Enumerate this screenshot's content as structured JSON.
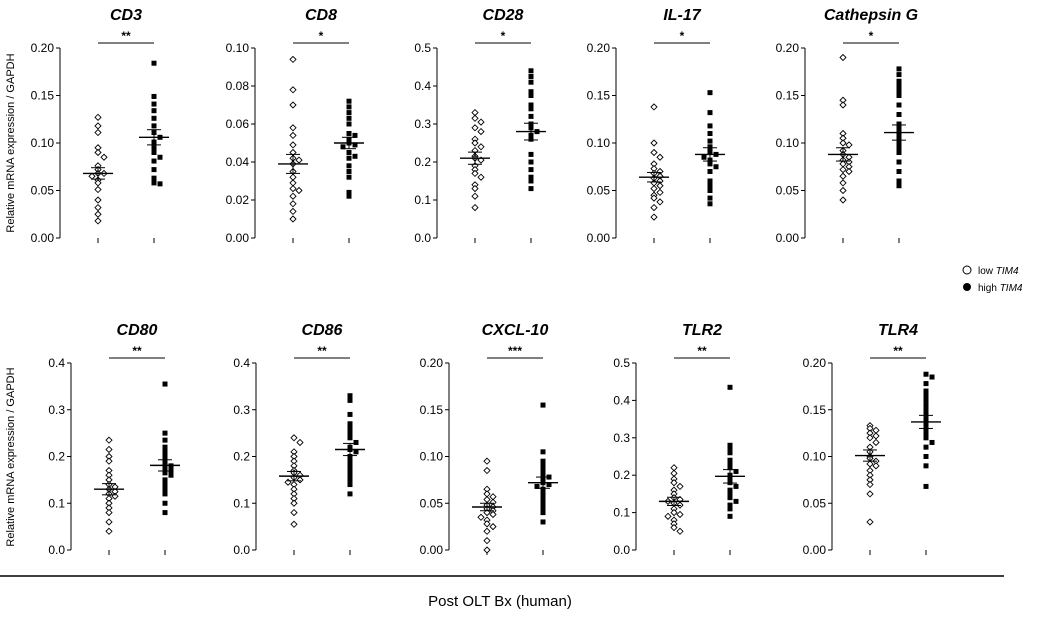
{
  "chart_data": {
    "type": "scatter",
    "figure_xlabel": "Post OLT Bx (human)",
    "ylabel": "Relative mRNA expression / GAPDH",
    "legend": {
      "low_prefix": "low ",
      "high_prefix": "high ",
      "gene": "TIM4"
    },
    "panels": [
      {
        "title": "CD3",
        "sig": "**",
        "ylim": [
          0,
          0.2
        ],
        "ticks": [
          "0.00",
          "0.05",
          "0.10",
          "0.15",
          "0.20"
        ],
        "tick_values": [
          0,
          0.05,
          0.1,
          0.15,
          0.2
        ],
        "low": {
          "mean": 0.068,
          "sem": 0.006,
          "values": [
            0.127,
            0.118,
            0.111,
            0.095,
            0.09,
            0.085,
            0.076,
            0.072,
            0.068,
            0.068,
            0.065,
            0.061,
            0.058,
            0.051,
            0.04,
            0.032,
            0.025,
            0.018
          ]
        },
        "high": {
          "mean": 0.106,
          "sem": 0.008,
          "values": [
            0.184,
            0.149,
            0.141,
            0.134,
            0.126,
            0.118,
            0.111,
            0.106,
            0.101,
            0.095,
            0.09,
            0.085,
            0.081,
            0.072,
            0.063,
            0.058,
            0.057
          ]
        }
      },
      {
        "title": "CD8",
        "sig": "*",
        "ylim": [
          0,
          0.1
        ],
        "ticks": [
          "0.00",
          "0.02",
          "0.04",
          "0.06",
          "0.08",
          "0.10"
        ],
        "tick_values": [
          0,
          0.02,
          0.04,
          0.06,
          0.08,
          0.1
        ],
        "low": {
          "mean": 0.039,
          "sem": 0.005,
          "values": [
            0.094,
            0.078,
            0.07,
            0.058,
            0.054,
            0.049,
            0.045,
            0.042,
            0.041,
            0.039,
            0.035,
            0.032,
            0.029,
            0.026,
            0.025,
            0.022,
            0.018,
            0.01,
            0.014
          ]
        },
        "high": {
          "mean": 0.05,
          "sem": 0.003,
          "values": [
            0.072,
            0.069,
            0.066,
            0.063,
            0.06,
            0.055,
            0.054,
            0.052,
            0.05,
            0.049,
            0.048,
            0.045,
            0.043,
            0.042,
            0.038,
            0.035,
            0.032,
            0.024,
            0.022
          ]
        }
      },
      {
        "title": "CD28",
        "sig": "*",
        "ylim": [
          0,
          0.5
        ],
        "ticks": [
          "0.0",
          "0.1",
          "0.2",
          "0.3",
          "0.4",
          "0.5"
        ],
        "tick_values": [
          0,
          0.1,
          0.2,
          0.3,
          0.4,
          0.5
        ],
        "low": {
          "mean": 0.21,
          "sem": 0.016,
          "values": [
            0.33,
            0.315,
            0.305,
            0.29,
            0.28,
            0.26,
            0.25,
            0.24,
            0.23,
            0.215,
            0.21,
            0.205,
            0.19,
            0.18,
            0.17,
            0.16,
            0.14,
            0.13,
            0.11,
            0.08
          ]
        },
        "high": {
          "mean": 0.28,
          "sem": 0.022,
          "values": [
            0.44,
            0.425,
            0.41,
            0.385,
            0.375,
            0.35,
            0.34,
            0.32,
            0.3,
            0.29,
            0.28,
            0.27,
            0.26,
            0.22,
            0.2,
            0.18,
            0.16,
            0.15,
            0.13
          ]
        }
      },
      {
        "title": "IL-17",
        "sig": "*",
        "ylim": [
          0,
          0.2
        ],
        "ticks": [
          "0.00",
          "0.05",
          "0.10",
          "0.15",
          "0.20"
        ],
        "tick_values": [
          0,
          0.05,
          0.1,
          0.15,
          0.2
        ],
        "low": {
          "mean": 0.064,
          "sem": 0.005,
          "values": [
            0.138,
            0.1,
            0.09,
            0.085,
            0.078,
            0.073,
            0.07,
            0.068,
            0.065,
            0.063,
            0.06,
            0.058,
            0.055,
            0.052,
            0.048,
            0.045,
            0.042,
            0.038,
            0.032,
            0.022
          ]
        },
        "high": {
          "mean": 0.088,
          "sem": 0.007,
          "values": [
            0.153,
            0.132,
            0.118,
            0.11,
            0.102,
            0.096,
            0.092,
            0.09,
            0.088,
            0.085,
            0.082,
            0.078,
            0.075,
            0.07,
            0.06,
            0.055,
            0.05,
            0.042,
            0.036
          ]
        }
      },
      {
        "title": "Cathepsin G",
        "sig": "*",
        "ylim": [
          0,
          0.2
        ],
        "ticks": [
          "0.00",
          "0.05",
          "0.10",
          "0.15",
          "0.20"
        ],
        "tick_values": [
          0,
          0.05,
          0.1,
          0.15,
          0.2
        ],
        "low": {
          "mean": 0.088,
          "sem": 0.007,
          "values": [
            0.19,
            0.145,
            0.14,
            0.11,
            0.105,
            0.1,
            0.098,
            0.092,
            0.088,
            0.085,
            0.082,
            0.08,
            0.078,
            0.075,
            0.072,
            0.07,
            0.065,
            0.058,
            0.05,
            0.04
          ]
        },
        "high": {
          "mean": 0.111,
          "sem": 0.008,
          "values": [
            0.178,
            0.172,
            0.165,
            0.16,
            0.155,
            0.15,
            0.14,
            0.13,
            0.12,
            0.115,
            0.11,
            0.105,
            0.1,
            0.095,
            0.09,
            0.08,
            0.07,
            0.06,
            0.055
          ]
        }
      },
      {
        "title": "CD80",
        "sig": "**",
        "ylim": [
          0,
          0.4
        ],
        "ticks": [
          "0.0",
          "0.1",
          "0.2",
          "0.3",
          "0.4"
        ],
        "tick_values": [
          0,
          0.1,
          0.2,
          0.3,
          0.4
        ],
        "low": {
          "mean": 0.13,
          "sem": 0.012,
          "values": [
            0.235,
            0.215,
            0.2,
            0.19,
            0.17,
            0.16,
            0.15,
            0.14,
            0.135,
            0.13,
            0.125,
            0.12,
            0.115,
            0.11,
            0.1,
            0.09,
            0.08,
            0.06,
            0.04
          ]
        },
        "high": {
          "mean": 0.181,
          "sem": 0.012,
          "values": [
            0.355,
            0.25,
            0.235,
            0.22,
            0.21,
            0.2,
            0.19,
            0.185,
            0.18,
            0.175,
            0.17,
            0.165,
            0.16,
            0.15,
            0.14,
            0.13,
            0.12,
            0.1,
            0.08
          ]
        }
      },
      {
        "title": "CD86",
        "sig": "**",
        "ylim": [
          0,
          0.4
        ],
        "ticks": [
          "0.0",
          "0.1",
          "0.2",
          "0.3",
          "0.4"
        ],
        "tick_values": [
          0,
          0.1,
          0.2,
          0.3,
          0.4
        ],
        "low": {
          "mean": 0.158,
          "sem": 0.01,
          "values": [
            0.24,
            0.23,
            0.21,
            0.2,
            0.19,
            0.18,
            0.17,
            0.165,
            0.16,
            0.155,
            0.15,
            0.145,
            0.14,
            0.13,
            0.12,
            0.11,
            0.1,
            0.08,
            0.055
          ]
        },
        "high": {
          "mean": 0.215,
          "sem": 0.013,
          "values": [
            0.33,
            0.32,
            0.29,
            0.27,
            0.26,
            0.25,
            0.24,
            0.23,
            0.22,
            0.215,
            0.21,
            0.2,
            0.19,
            0.18,
            0.17,
            0.16,
            0.15,
            0.14,
            0.12
          ]
        }
      },
      {
        "title": "CXCL-10",
        "sig": "***",
        "ylim": [
          0,
          0.2
        ],
        "ticks": [
          "0.00",
          "0.05",
          "0.10",
          "0.15",
          "0.20"
        ],
        "tick_values": [
          0,
          0.05,
          0.1,
          0.15,
          0.2
        ],
        "low": {
          "mean": 0.046,
          "sem": 0.004,
          "values": [
            0.095,
            0.085,
            0.065,
            0.06,
            0.057,
            0.054,
            0.051,
            0.048,
            0.046,
            0.044,
            0.042,
            0.04,
            0.038,
            0.035,
            0.032,
            0.028,
            0.025,
            0.02,
            0.01,
            0.0
          ]
        },
        "high": {
          "mean": 0.072,
          "sem": 0.006,
          "values": [
            0.155,
            0.105,
            0.095,
            0.09,
            0.085,
            0.08,
            0.078,
            0.075,
            0.072,
            0.07,
            0.068,
            0.065,
            0.06,
            0.055,
            0.05,
            0.045,
            0.04,
            0.03
          ]
        }
      },
      {
        "title": "TLR2",
        "sig": "**",
        "ylim": [
          0,
          0.5
        ],
        "ticks": [
          "0.0",
          "0.1",
          "0.2",
          "0.3",
          "0.4",
          "0.5"
        ],
        "tick_values": [
          0,
          0.1,
          0.2,
          0.3,
          0.4,
          0.5
        ],
        "low": {
          "mean": 0.13,
          "sem": 0.011,
          "values": [
            0.22,
            0.205,
            0.19,
            0.18,
            0.17,
            0.16,
            0.15,
            0.14,
            0.135,
            0.13,
            0.125,
            0.12,
            0.11,
            0.1,
            0.095,
            0.09,
            0.08,
            0.07,
            0.06,
            0.05
          ]
        },
        "high": {
          "mean": 0.197,
          "sem": 0.018,
          "values": [
            0.435,
            0.28,
            0.27,
            0.26,
            0.24,
            0.23,
            0.22,
            0.21,
            0.2,
            0.19,
            0.18,
            0.17,
            0.16,
            0.15,
            0.14,
            0.13,
            0.12,
            0.11,
            0.09
          ]
        }
      },
      {
        "title": "TLR4",
        "sig": "**",
        "ylim": [
          0,
          0.2
        ],
        "ticks": [
          "0.00",
          "0.05",
          "0.10",
          "0.15",
          "0.20"
        ],
        "tick_values": [
          0,
          0.05,
          0.1,
          0.15,
          0.2
        ],
        "low": {
          "mean": 0.101,
          "sem": 0.006,
          "values": [
            0.133,
            0.13,
            0.128,
            0.125,
            0.122,
            0.12,
            0.115,
            0.11,
            0.105,
            0.1,
            0.098,
            0.095,
            0.092,
            0.09,
            0.085,
            0.08,
            0.075,
            0.07,
            0.06,
            0.03
          ]
        },
        "high": {
          "mean": 0.137,
          "sem": 0.007,
          "values": [
            0.188,
            0.185,
            0.178,
            0.17,
            0.165,
            0.16,
            0.155,
            0.15,
            0.145,
            0.14,
            0.135,
            0.13,
            0.125,
            0.12,
            0.115,
            0.11,
            0.1,
            0.09,
            0.068
          ]
        }
      }
    ]
  }
}
